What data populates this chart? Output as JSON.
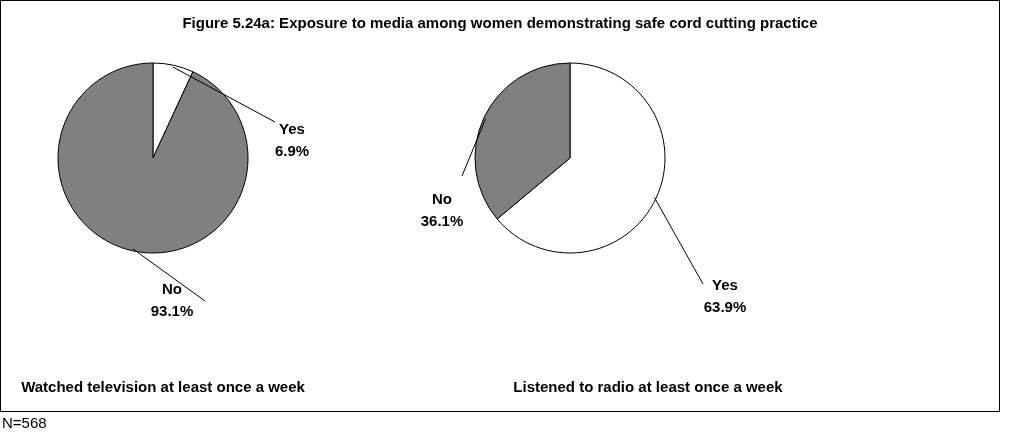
{
  "chart_data": [
    {
      "type": "pie",
      "title": "Figure 5.24a: Exposure to media among women demonstrating safe cord cutting practice",
      "xlabel": "Watched television at least once a week",
      "categories": [
        "Yes",
        "No"
      ],
      "values": [
        6.9,
        93.1
      ],
      "colors": [
        "#ffffff",
        "#808080"
      ],
      "value_labels": [
        "6.9%",
        "93.1%"
      ],
      "annotations": [
        "N=568"
      ]
    },
    {
      "type": "pie",
      "xlabel": "Listened to radio at least once a week",
      "categories": [
        "Yes",
        "No"
      ],
      "values": [
        63.9,
        36.1
      ],
      "colors": [
        "#ffffff",
        "#808080"
      ],
      "value_labels": [
        "63.9%",
        "36.1%"
      ]
    }
  ]
}
